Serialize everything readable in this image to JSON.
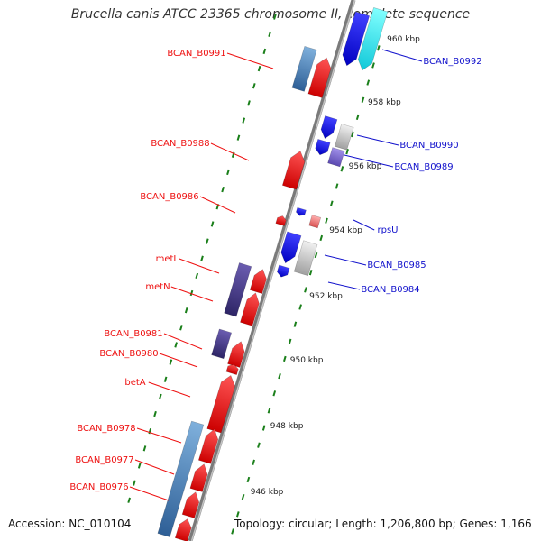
{
  "title": "Brucella canis ATCC 23365 chromosome II, complete sequence",
  "footer": {
    "accession": "Accession: NC_010104",
    "summary": "Topology: circular; Length: 1,206,800 bp; Genes: 1,166"
  },
  "colors": {
    "forward_label": "#ee1111",
    "reverse_label": "#1111cc",
    "backbone": "#888888",
    "tick": "#1a7f1a",
    "gene_red": "#ff1a1a",
    "gene_blue": "#1a1aff",
    "gene_steel": "#4a86c0",
    "gene_indigo": "#4c3f8f",
    "gene_cyan": "#28e6f0",
    "gene_silver": "#c8c8c8",
    "gene_lavender": "#8070d0",
    "gene_pink": "#f08080"
  },
  "scale_labels": [
    "960 kbp",
    "958 kbp",
    "956 kbp",
    "954 kbp",
    "952 kbp",
    "950 kbp",
    "948 kbp",
    "946 kbp"
  ],
  "forward_gene_labels": [
    "BCAN_B0991",
    "BCAN_B0988",
    "BCAN_B0986",
    "metI",
    "metN",
    "BCAN_B0981",
    "BCAN_B0980",
    "betA",
    "BCAN_B0978",
    "BCAN_B0977",
    "BCAN_B0976"
  ],
  "reverse_gene_labels": [
    "BCAN_B0992",
    "BCAN_B0990",
    "BCAN_B0989",
    "rpsU",
    "BCAN_B0985",
    "BCAN_B0984"
  ]
}
